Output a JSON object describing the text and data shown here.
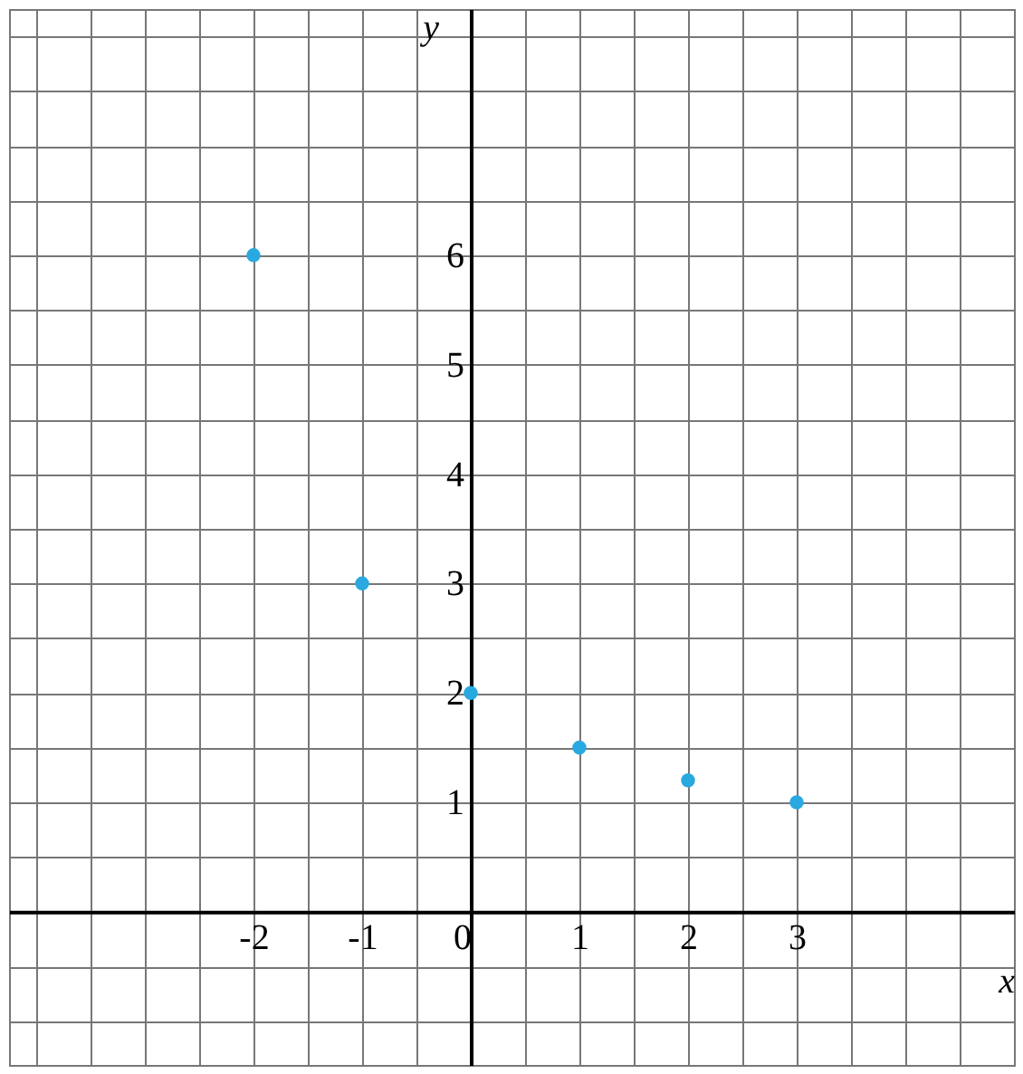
{
  "chart_data": {
    "type": "scatter",
    "xlabel": "x",
    "ylabel": "y",
    "x": [
      -2,
      -1,
      0,
      1,
      2,
      3
    ],
    "values": [
      6,
      3,
      2,
      1.5,
      1.2,
      1
    ],
    "color": "#29a9e0",
    "marker": "circle",
    "grid": true,
    "xlim": [
      -4.25,
      5.0
    ],
    "ylim": [
      -1.4,
      8.25
    ],
    "xticks": [
      {
        "value": -4,
        "label": null
      },
      {
        "value": -3.5,
        "label": null
      },
      {
        "value": -3,
        "label": null
      },
      {
        "value": -2.5,
        "label": null
      },
      -2,
      {
        "value": -1.5,
        "label": null
      },
      -1,
      {
        "value": -0.5,
        "label": null
      },
      0,
      {
        "value": 0.5,
        "label": null
      },
      1,
      {
        "value": 1.5,
        "label": null
      },
      2,
      {
        "value": 2.5,
        "label": null
      },
      3,
      {
        "value": 3.5,
        "label": null
      },
      {
        "value": 4,
        "label": null
      },
      {
        "value": 4.5,
        "label": null
      },
      {
        "value": 5,
        "label": null
      }
    ],
    "yticks": [
      {
        "value": -1,
        "label": null
      },
      {
        "value": -0.5,
        "label": null
      },
      {
        "value": 0,
        "label": null
      },
      {
        "value": 0.5,
        "label": null
      },
      1,
      {
        "value": 1.5,
        "label": null
      },
      2,
      {
        "value": 2.5,
        "label": null
      },
      3,
      {
        "value": 3.5,
        "label": null
      },
      4,
      {
        "value": 4.5,
        "label": null
      },
      5,
      {
        "value": 5.5,
        "label": null
      },
      6,
      {
        "value": 6.5,
        "label": null
      },
      {
        "value": 7,
        "label": null
      },
      {
        "value": 7.5,
        "label": null
      },
      {
        "value": 8,
        "label": null
      }
    ]
  }
}
